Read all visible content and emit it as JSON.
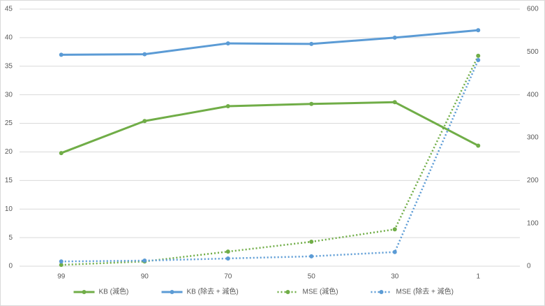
{
  "chart_data": {
    "type": "line",
    "categories": [
      "99",
      "90",
      "70",
      "50",
      "30",
      "1"
    ],
    "series": [
      {
        "name": "KB (減色)",
        "color": "#70ad47",
        "style": "solid",
        "axis": "y",
        "values": [
          19.8,
          25.4,
          28.0,
          28.4,
          28.7,
          21.1
        ]
      },
      {
        "name": "KB (除去 + 減色)",
        "color": "#5b9bd5",
        "style": "solid",
        "axis": "y",
        "values": [
          37.0,
          37.1,
          39.0,
          38.9,
          40.0,
          41.3
        ]
      },
      {
        "name": "MSE (減色)",
        "color": "#70ad47",
        "style": "dotted",
        "axis": "y2",
        "values": [
          3,
          11,
          34,
          57,
          86,
          491
        ]
      },
      {
        "name": "MSE (除去 + 減色)",
        "color": "#5b9bd5",
        "style": "dotted",
        "axis": "y2",
        "values": [
          11,
          13,
          18,
          23,
          33,
          481
        ]
      }
    ],
    "ylim": [
      0,
      45
    ],
    "yticks": [
      0,
      5,
      10,
      15,
      20,
      25,
      30,
      35,
      40,
      45
    ],
    "y2lim": [
      0,
      600
    ],
    "y2ticks": [
      0,
      100,
      200,
      300,
      400,
      500,
      600
    ],
    "grid": true,
    "legend": "bottom"
  }
}
